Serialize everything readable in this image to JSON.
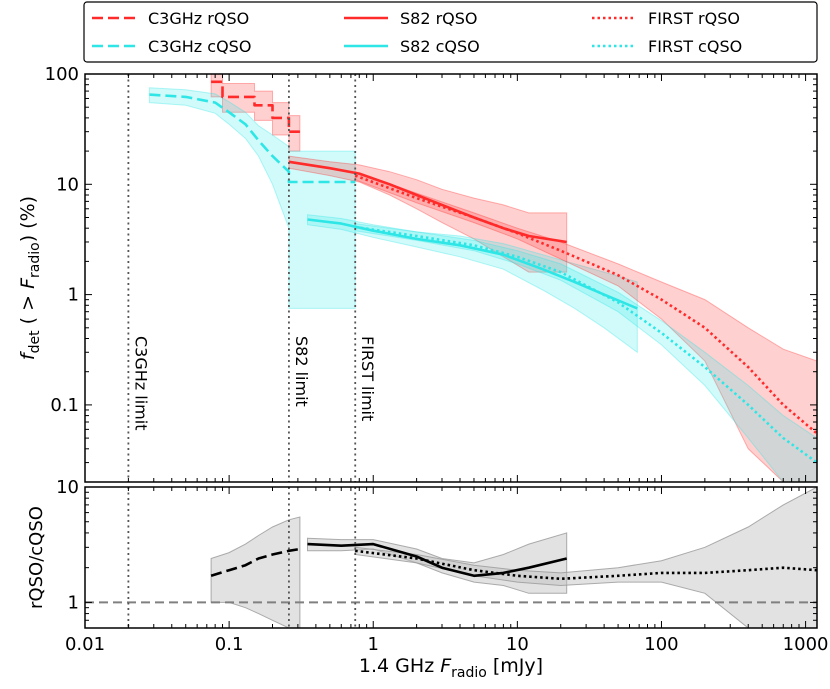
{
  "chart_data": {
    "type": "line",
    "xlabel": "1.4 GHz F_radio [mJy]",
    "xlabel_parts": {
      "pre": "1.4 GHz ",
      "var": "F",
      "sub": "radio",
      "post": " [mJy]"
    },
    "top_panel": {
      "ylabel_parts": {
        "f": "f",
        "det": "det",
        "mid": " ( > ",
        "F": "F",
        "radio": "radio",
        "end": ") (%)"
      },
      "ylim": [
        0.02,
        100
      ],
      "yscale": "log",
      "yticks": [
        {
          "value": 100,
          "label": "100"
        },
        {
          "value": 10,
          "label": "10"
        },
        {
          "value": 1,
          "label": "1"
        },
        {
          "value": 0.1,
          "label": "0.1"
        }
      ]
    },
    "bottom_panel": {
      "ylabel": "rQSO/cQSO",
      "ylim": [
        0.6,
        10
      ],
      "yscale": "log",
      "yticks": [
        {
          "value": 10,
          "label": "10"
        },
        {
          "value": 1,
          "label": "1"
        }
      ],
      "reference_line": 1
    },
    "xlim": [
      0.01,
      1200
    ],
    "xscale": "log",
    "xticks": [
      {
        "value": 0.01,
        "label": "0.01"
      },
      {
        "value": 0.1,
        "label": "0.1"
      },
      {
        "value": 1,
        "label": "1"
      },
      {
        "value": 10,
        "label": "10"
      },
      {
        "value": 100,
        "label": "100"
      },
      {
        "value": 1000,
        "label": "1000"
      }
    ],
    "limits": [
      {
        "x": 0.02,
        "label": "C3GHz limit"
      },
      {
        "x": 0.26,
        "label": "S82 limit"
      },
      {
        "x": 0.75,
        "label": "FIRST limit"
      }
    ],
    "legend_position": "top",
    "series": [
      {
        "name": "C3GHz rQSO",
        "color": "#ff2a2a",
        "style": "dashed",
        "legend_col": 0,
        "legend_row": 0,
        "x": [
          0.075,
          0.09,
          0.09,
          0.15,
          0.15,
          0.2,
          0.2,
          0.26,
          0.26,
          0.31
        ],
        "y": [
          85,
          85,
          62,
          62,
          52,
          52,
          40,
          40,
          30,
          30
        ],
        "band_lo": [
          62,
          62,
          45,
          45,
          38,
          38,
          28,
          28,
          20,
          20
        ],
        "band_hi": [
          110,
          110,
          82,
          82,
          70,
          70,
          55,
          55,
          42,
          42
        ]
      },
      {
        "name": "C3GHz cQSO",
        "color": "#2ee6e6",
        "style": "dashed",
        "legend_col": 0,
        "legend_row": 1,
        "x": [
          0.028,
          0.05,
          0.08,
          0.1,
          0.13,
          0.16,
          0.2,
          0.26,
          0.26,
          0.75
        ],
        "y": [
          65,
          62,
          55,
          45,
          35,
          25,
          18,
          13,
          10.5,
          10.5
        ],
        "band_lo": [
          55,
          52,
          44,
          35,
          26,
          18,
          10,
          4,
          0.75,
          0.75
        ],
        "band_hi": [
          75,
          72,
          66,
          56,
          45,
          34,
          28,
          22,
          20,
          20
        ]
      },
      {
        "name": "S82 rQSO",
        "color": "#ff2a2a",
        "style": "solid",
        "legend_col": 1,
        "legend_row": 0,
        "x": [
          0.26,
          0.5,
          0.8,
          1.3,
          2,
          3,
          5,
          8,
          12,
          22
        ],
        "y": [
          16,
          14,
          12.5,
          10,
          8,
          6.5,
          5,
          4,
          3.4,
          3.0
        ],
        "band_lo": [
          14,
          12,
          10.5,
          8,
          6,
          4.5,
          3.2,
          2.2,
          1.6,
          1.6
        ],
        "band_hi": [
          18,
          16,
          15,
          13,
          11,
          9,
          7.5,
          6.5,
          5.5,
          5.5
        ]
      },
      {
        "name": "S82 cQSO",
        "color": "#2ee6e6",
        "style": "solid",
        "legend_col": 1,
        "legend_row": 1,
        "x": [
          0.35,
          0.6,
          1,
          2,
          4,
          8,
          15,
          25,
          40,
          68
        ],
        "y": [
          4.8,
          4.4,
          3.8,
          3.2,
          2.8,
          2.3,
          1.7,
          1.3,
          1.0,
          0.75
        ],
        "band_lo": [
          4.3,
          3.9,
          3.3,
          2.7,
          2.2,
          1.7,
          1.1,
          0.75,
          0.5,
          0.3
        ],
        "band_hi": [
          5.3,
          4.9,
          4.3,
          3.7,
          3.4,
          2.9,
          2.3,
          1.9,
          1.6,
          1.3
        ]
      },
      {
        "name": "FIRST rQSO",
        "color": "#ff2a2a",
        "style": "dotted",
        "legend_col": 2,
        "legend_row": 0,
        "x": [
          0.75,
          2,
          5,
          10,
          20,
          50,
          100,
          200,
          400,
          700,
          1200
        ],
        "y": [
          12,
          7.5,
          5,
          3.6,
          2.5,
          1.5,
          0.9,
          0.5,
          0.22,
          0.1,
          0.055
        ],
        "band_lo": [
          11,
          6.8,
          4.5,
          3.2,
          2.1,
          1.2,
          0.6,
          0.25,
          0.04,
          0.02,
          0.02
        ],
        "band_hi": [
          13,
          8.3,
          5.5,
          4.0,
          3.0,
          1.9,
          1.3,
          0.9,
          0.5,
          0.32,
          0.25
        ]
      },
      {
        "name": "FIRST cQSO",
        "color": "#2ee6e6",
        "style": "dotted",
        "legend_col": 2,
        "legend_row": 1,
        "x": [
          0.75,
          2,
          5,
          10,
          20,
          50,
          100,
          200,
          400,
          700,
          1200
        ],
        "y": [
          4.1,
          3.4,
          2.8,
          2.2,
          1.6,
          0.85,
          0.45,
          0.22,
          0.1,
          0.05,
          0.03
        ],
        "band_lo": [
          3.8,
          3.1,
          2.5,
          1.9,
          1.35,
          0.7,
          0.35,
          0.15,
          0.05,
          0.02,
          0.02
        ],
        "band_hi": [
          4.4,
          3.7,
          3.1,
          2.5,
          1.9,
          1.05,
          0.58,
          0.3,
          0.15,
          0.08,
          0.05
        ]
      }
    ],
    "ratio_series": [
      {
        "name": "C3GHz ratio",
        "color": "#000000",
        "style": "dashed",
        "x": [
          0.075,
          0.1,
          0.13,
          0.16,
          0.2,
          0.26,
          0.31
        ],
        "y": [
          1.7,
          1.9,
          2.1,
          2.4,
          2.6,
          2.8,
          2.9
        ],
        "band_lo": [
          1.0,
          1.0,
          0.9,
          0.8,
          0.7,
          0.6,
          0.6
        ],
        "band_hi": [
          2.4,
          2.7,
          3.2,
          3.8,
          4.5,
          5.2,
          5.5
        ]
      },
      {
        "name": "S82 ratio",
        "color": "#000000",
        "style": "solid",
        "x": [
          0.35,
          0.6,
          1,
          2,
          3,
          5,
          8,
          12,
          22
        ],
        "y": [
          3.2,
          3.1,
          3.2,
          2.5,
          2.0,
          1.7,
          1.8,
          2.0,
          2.4
        ],
        "band_lo": [
          2.8,
          2.8,
          2.9,
          2.2,
          1.8,
          1.5,
          1.4,
          1.2,
          1.2
        ],
        "band_hi": [
          3.6,
          3.5,
          3.5,
          2.9,
          2.4,
          2.2,
          2.6,
          3.2,
          4.0
        ]
      },
      {
        "name": "FIRST ratio",
        "color": "#000000",
        "style": "dotted",
        "x": [
          0.75,
          2,
          5,
          10,
          20,
          50,
          100,
          200,
          400,
          700,
          1200
        ],
        "y": [
          2.8,
          2.4,
          1.9,
          1.7,
          1.6,
          1.7,
          1.8,
          1.8,
          1.9,
          2.0,
          1.9
        ],
        "band_lo": [
          2.6,
          2.2,
          1.7,
          1.5,
          1.4,
          1.5,
          1.5,
          1.2,
          0.6,
          0.6,
          0.6
        ],
        "band_hi": [
          3.0,
          2.6,
          2.1,
          1.9,
          1.8,
          2.0,
          2.3,
          3.0,
          4.5,
          7.0,
          10
        ]
      }
    ]
  }
}
